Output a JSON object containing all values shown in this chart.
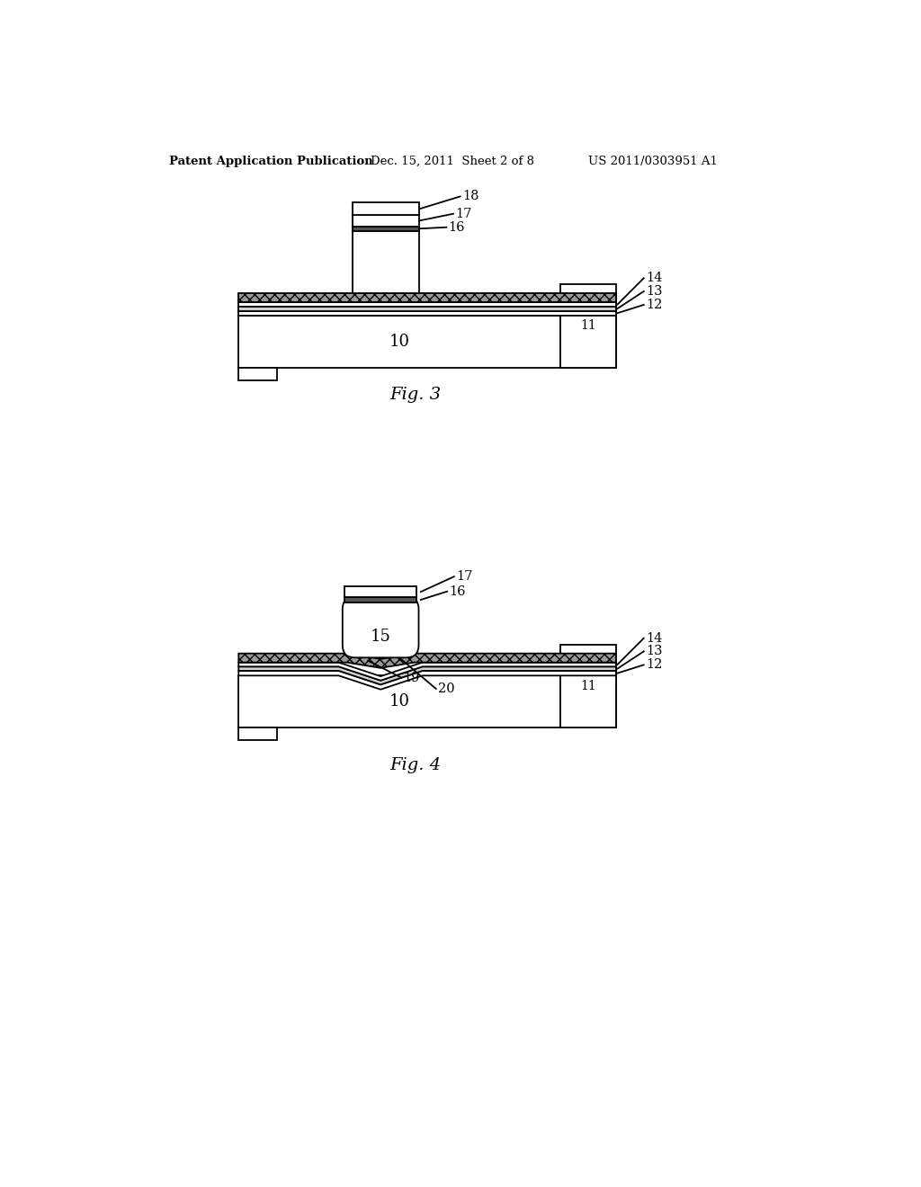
{
  "background_color": "#ffffff",
  "header_left": "Patent Application Publication",
  "header_mid": "Dec. 15, 2011  Sheet 2 of 8",
  "header_right": "US 2011/0303951 A1",
  "fig3_caption": "Fig. 3",
  "fig4_caption": "Fig. 4"
}
